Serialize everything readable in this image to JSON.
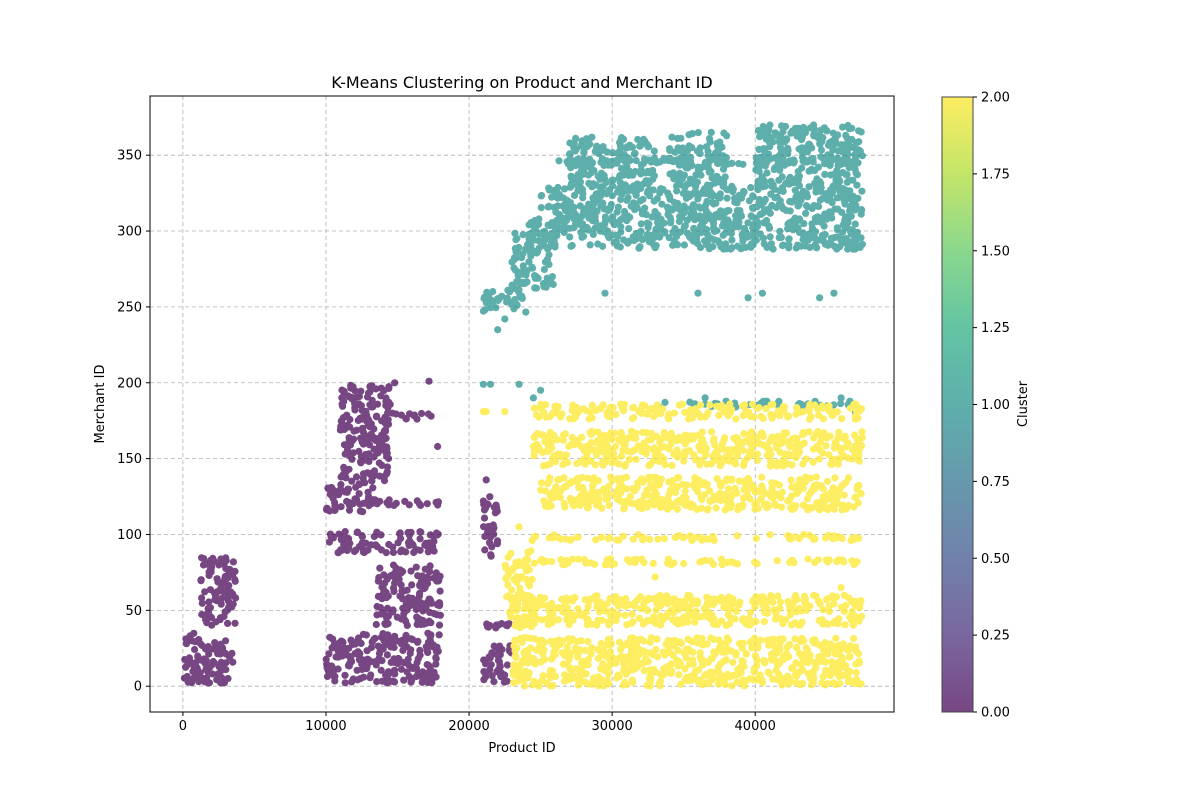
{
  "chart_data": {
    "type": "scatter",
    "title": "K-Means Clustering on Product and Merchant ID",
    "xlabel": "Product ID",
    "ylabel": "Merchant ID",
    "xlim": [
      -2300,
      49700
    ],
    "ylim": [
      -17,
      389
    ],
    "xticks": [
      0,
      10000,
      20000,
      30000,
      40000
    ],
    "xtick_labels": [
      "0",
      "10000",
      "20000",
      "30000",
      "40000"
    ],
    "yticks": [
      0,
      50,
      100,
      150,
      200,
      250,
      300,
      350
    ],
    "ytick_labels": [
      "0",
      "50",
      "100",
      "150",
      "200",
      "250",
      "300",
      "350"
    ],
    "grid": true,
    "colorbar": {
      "label": "Cluster",
      "range": [
        0,
        2
      ],
      "ticks": [
        "0.00",
        "0.25",
        "0.50",
        "0.75",
        "1.00",
        "1.25",
        "1.50",
        "1.75",
        "2.00"
      ],
      "colormap": "viridis"
    },
    "cluster_colors": [
      "#440154",
      "#21918c",
      "#fde725"
    ],
    "series": [
      {
        "cluster": 0,
        "regions": [
          {
            "x": [
              0,
              1200
            ],
            "y": [
              2,
              35
            ]
          },
          {
            "x": [
              1000,
              3500
            ],
            "y": [
              2,
              30
            ]
          },
          {
            "x": [
              1200,
              3700
            ],
            "y": [
              40,
              85
            ]
          },
          {
            "x": [
              0,
              4000
            ],
            "y": [
              2,
              6
            ]
          },
          {
            "x": [
              10000,
              18000
            ],
            "y": [
              2,
              35
            ]
          },
          {
            "x": [
              10000,
              13500
            ],
            "y": [
              115,
              135
            ]
          },
          {
            "x": [
              11000,
              14500
            ],
            "y": [
              135,
              200
            ]
          },
          {
            "x": [
              13500,
              18000
            ],
            "y": [
              40,
              80
            ]
          },
          {
            "x": [
              10000,
              18000
            ],
            "y": [
              88,
              102
            ]
          },
          {
            "x": [
              13000,
              18000
            ],
            "y": [
              119,
              123
            ]
          },
          {
            "x": [
              14500,
              17500
            ],
            "y": [
              176,
              180
            ]
          },
          {
            "x": [
              21000,
              23000
            ],
            "y": [
              2,
              28
            ]
          },
          {
            "x": [
              21000,
              23000
            ],
            "y": [
              38,
              42
            ]
          },
          {
            "x": [
              21000,
              22000
            ],
            "y": [
              85,
              125
            ]
          }
        ],
        "points": [
          [
            17800,
            158
          ],
          [
            17200,
            201
          ],
          [
            14800,
            200
          ],
          [
            21200,
            136
          ],
          [
            21000,
            122
          ]
        ]
      },
      {
        "cluster": 1,
        "regions": [
          {
            "x": [
              21000,
              24000
            ],
            "y": [
              245,
              262
            ]
          },
          {
            "x": [
              23000,
              26000
            ],
            "y": [
              262,
              300
            ]
          },
          {
            "x": [
              24000,
              47500
            ],
            "y": [
              288,
              310
            ]
          },
          {
            "x": [
              25000,
              47500
            ],
            "y": [
              310,
              330
            ]
          },
          {
            "x": [
              26000,
              47500
            ],
            "y": [
              344,
              348
            ]
          },
          {
            "x": [
              27000,
              33000
            ],
            "y": [
              330,
              362
            ]
          },
          {
            "x": [
              34000,
              38000
            ],
            "y": [
              330,
              365
            ]
          },
          {
            "x": [
              40000,
              47500
            ],
            "y": [
              330,
              370
            ]
          },
          {
            "x": [
              33000,
              47000
            ],
            "y": [
              184,
              188
            ]
          }
        ],
        "points": [
          [
            21000,
            199
          ],
          [
            21500,
            199
          ],
          [
            23500,
            199
          ],
          [
            25000,
            195
          ],
          [
            24500,
            190
          ],
          [
            36500,
            190
          ],
          [
            29500,
            259
          ],
          [
            36000,
            259
          ],
          [
            39500,
            256
          ],
          [
            40500,
            259
          ],
          [
            44500,
            256
          ],
          [
            45500,
            259
          ],
          [
            22000,
            235
          ],
          [
            22500,
            242
          ],
          [
            46000,
            190
          ],
          [
            47000,
            180
          ]
        ]
      },
      {
        "cluster": 2,
        "regions": [
          {
            "x": [
              23000,
              47500
            ],
            "y": [
              0,
              32
            ]
          },
          {
            "x": [
              25000,
              47500
            ],
            "y": [
              116,
              138
            ]
          },
          {
            "x": [
              22500,
              24500
            ],
            "y": [
              38,
              90
            ]
          },
          {
            "x": [
              24000,
              47500
            ],
            "y": [
              96,
              100
            ]
          },
          {
            "x": [
              24500,
              47500
            ],
            "y": [
              145,
              168
            ]
          },
          {
            "x": [
              24500,
              47500
            ],
            "y": [
              176,
              186
            ]
          },
          {
            "x": [
              24000,
              47500
            ],
            "y": [
              80,
              84
            ]
          },
          {
            "x": [
              24000,
              47500
            ],
            "y": [
              40,
              60
            ]
          }
        ],
        "points": [
          [
            21000,
            181
          ],
          [
            21200,
            181
          ],
          [
            22500,
            181
          ],
          [
            23500,
            105
          ],
          [
            24500,
            158
          ],
          [
            33000,
            72
          ],
          [
            46000,
            65
          ],
          [
            47000,
            176
          ]
        ]
      }
    ]
  }
}
